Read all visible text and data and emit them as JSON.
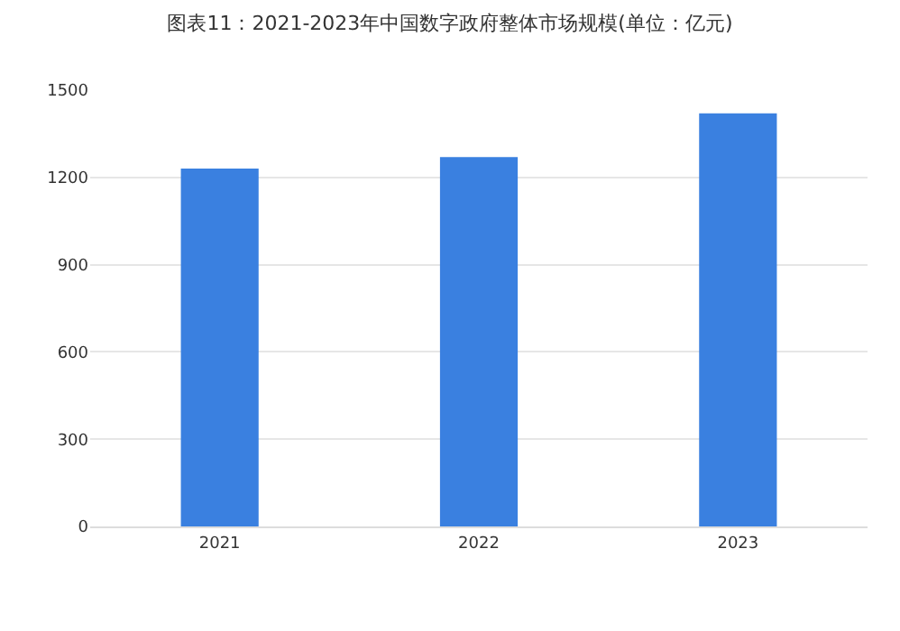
{
  "chart_data": {
    "type": "bar",
    "title": "图表11：2021-2023年中国数字政府整体市场规模(单位：亿元)",
    "categories": [
      "2021",
      "2022",
      "2023"
    ],
    "values": [
      1230,
      1270,
      1420
    ],
    "color": "#3a80e0",
    "ylim": [
      0,
      1500
    ],
    "yticks": [
      0,
      300,
      600,
      900,
      1200,
      1500
    ],
    "grid": "y"
  }
}
